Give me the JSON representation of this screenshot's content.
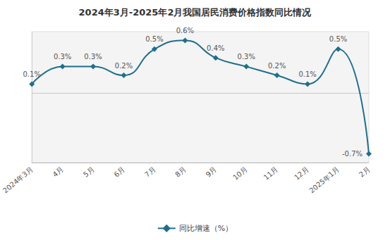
{
  "chart_data": {
    "type": "line",
    "title": "2024年3月-2025年2月我国居民消费价格指数同比情况",
    "categories": [
      "2024年3月",
      "4月",
      "5月",
      "6月",
      "7月",
      "8月",
      "9月",
      "10月",
      "11月",
      "12月",
      "2025年1月",
      "2月"
    ],
    "series": [
      {
        "name": "同比增速（%）",
        "color": "#1f6e8c",
        "marker": "diamond",
        "values": [
          0.1,
          0.3,
          0.3,
          0.2,
          0.5,
          0.6,
          0.4,
          0.3,
          0.2,
          0.1,
          0.5,
          -0.7
        ],
        "value_labels": [
          "0.1%",
          "0.3%",
          "0.3%",
          "0.2%",
          "0.5%",
          "0.6%",
          "0.4%",
          "0.3%",
          "0.2%",
          "0.1%",
          "0.5%",
          "-0.7%"
        ]
      }
    ],
    "ylim": [
      -0.8,
      0.7
    ],
    "yticks": [
      0
    ],
    "grid": true,
    "legend": "bottom",
    "data_labels": true,
    "tick_labels": "x"
  }
}
